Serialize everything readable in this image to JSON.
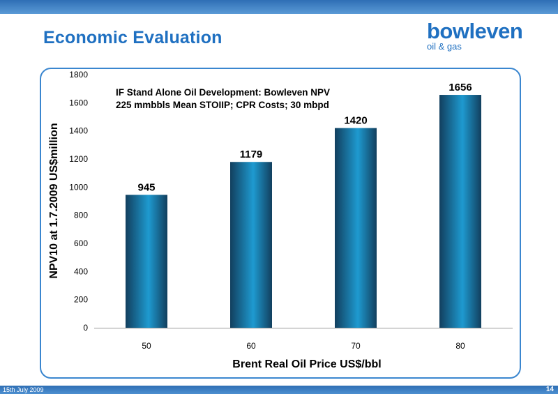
{
  "header": {
    "title": "Economic Evaluation"
  },
  "logo": {
    "name": "bowleven",
    "tagline": "oil & gas"
  },
  "colors": {
    "brand": "#1f70c1",
    "bar_dark": "#123f5e",
    "bar_light": "#1e9ad0"
  },
  "chart_data": {
    "type": "bar",
    "annotation": [
      "IF Stand Alone Oil Development: Bowleven NPV",
      "225 mmbbls Mean STOIIP; CPR Costs; 30 mbpd"
    ],
    "categories": [
      "50",
      "60",
      "70",
      "80"
    ],
    "values": [
      945,
      1179,
      1420,
      1656
    ],
    "data_labels": [
      "945",
      "1179",
      "1420",
      "1656"
    ],
    "xlabel": "Brent Real Oil Price US$/bbl",
    "ylabel": "NPV10 at 1.7.2009 US$million",
    "ylim": [
      0,
      1800
    ],
    "yticks": [
      0,
      200,
      400,
      600,
      800,
      1000,
      1200,
      1400,
      1600,
      1800
    ],
    "grid": false,
    "legend": "none"
  },
  "footer": {
    "date_text": "15th July 2009",
    "page_number": "14"
  }
}
